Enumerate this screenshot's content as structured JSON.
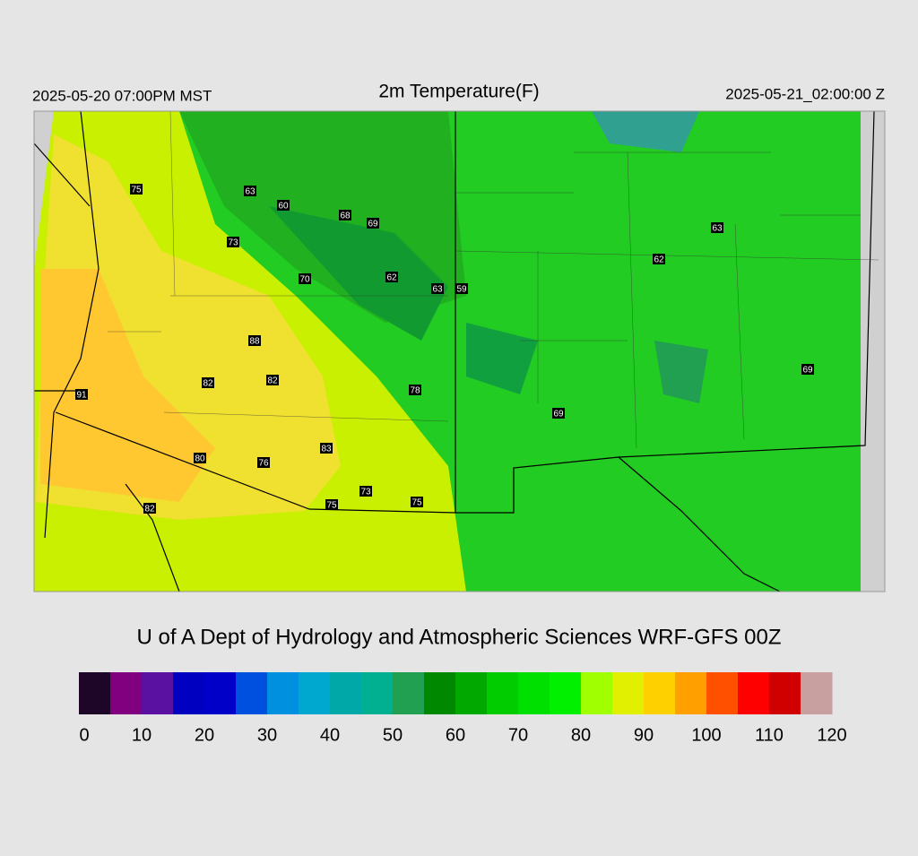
{
  "header": {
    "valid_local": "2025-05-20 07:00PM MST",
    "title": "2m Temperature(F)",
    "valid_utc": "2025-05-21_02:00:00 Z"
  },
  "map": {
    "stations": [
      75,
      63,
      60,
      68,
      69,
      73,
      70,
      62,
      63,
      59,
      62,
      63,
      88,
      82,
      82,
      78,
      69,
      69,
      91,
      83,
      80,
      76,
      73,
      75,
      75,
      82
    ]
  },
  "credit": "U of A Dept of Hydrology and Atmospheric Sciences WRF-GFS 00Z",
  "colorbar": {
    "range": [
      0,
      120
    ],
    "ticks": [
      0,
      10,
      20,
      30,
      40,
      50,
      60,
      70,
      80,
      90,
      100,
      110,
      120
    ],
    "colors": [
      "#1e0628",
      "#800080",
      "#5a10a0",
      "#0000c0",
      "#0000c8",
      "#0050e0",
      "#0090e0",
      "#00a8d0",
      "#00a8a8",
      "#00b090",
      "#20a050",
      "#008800",
      "#00a800",
      "#00cc00",
      "#00e000",
      "#00f000",
      "#a0ff00",
      "#e0f000",
      "#ffd000",
      "#ffa000",
      "#ff5000",
      "#ff0000",
      "#d00000",
      "#c8a0a0"
    ]
  }
}
